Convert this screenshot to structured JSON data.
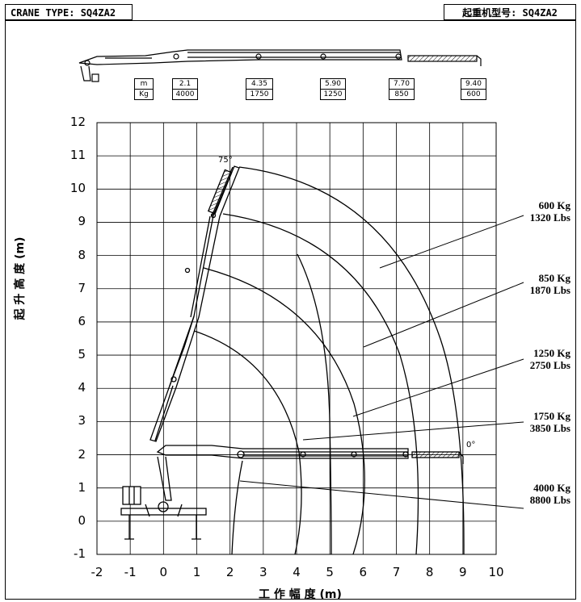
{
  "header": {
    "crane_type": "CRANE TYPE: SQ4ZA2",
    "crane_type_cn": "起重机型号: SQ4ZA2"
  },
  "load_table": {
    "unit_m": "m",
    "unit_kg": "Kg",
    "entries": [
      {
        "m": "2.1",
        "kg": "4000"
      },
      {
        "m": "4.35",
        "kg": "1750"
      },
      {
        "m": "5.90",
        "kg": "1250"
      },
      {
        "m": "7.70",
        "kg": "850"
      },
      {
        "m": "9.40",
        "kg": "600"
      }
    ]
  },
  "axes": {
    "y_label": "起 升 高 度 (m)",
    "x_label": "工 作 幅 度 (m)",
    "y_ticks": [
      "12",
      "11",
      "10",
      "9",
      "8",
      "7",
      "6",
      "5",
      "4",
      "3",
      "2",
      "1",
      "0",
      "-1"
    ],
    "x_ticks": [
      "-2",
      "-1",
      "0",
      "1",
      "2",
      "3",
      "4",
      "5",
      "6",
      "7",
      "8",
      "9",
      "10"
    ]
  },
  "angles": {
    "max": "75°",
    "min": "0°"
  },
  "load_curves": [
    {
      "kg": "600 Kg",
      "lbs": "1320 Lbs"
    },
    {
      "kg": "850 Kg",
      "lbs": "1870 Lbs"
    },
    {
      "kg": "1250 Kg",
      "lbs": "2750 Lbs"
    },
    {
      "kg": "1750 Kg",
      "lbs": "3850 Lbs"
    },
    {
      "kg": "4000 Kg",
      "lbs": "8800 Lbs"
    }
  ]
}
